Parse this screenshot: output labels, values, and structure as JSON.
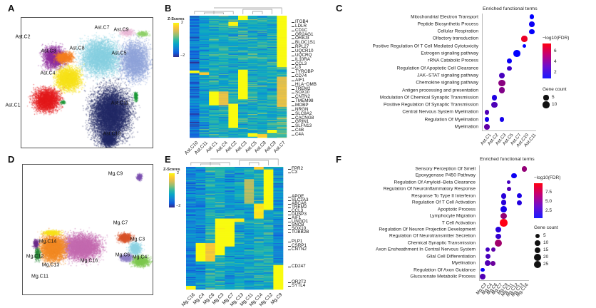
{
  "panels": {
    "A": "A",
    "B": "B",
    "C": "C",
    "D": "D",
    "E": "E",
    "F": "F"
  },
  "umap_astro": {
    "clusters": [
      {
        "label": "Ast.C1",
        "color": "#e31a1c"
      },
      {
        "label": "Ast.C2",
        "color": "#8e2c9c"
      },
      {
        "label": "Ast.C3",
        "color": "#f57f20"
      },
      {
        "label": "Ast.C4",
        "color": "#f7e21a"
      },
      {
        "label": "Ast.C5",
        "color": "#8fa3d9"
      },
      {
        "label": "Ast.C7",
        "color": "#e9b8d6"
      },
      {
        "label": "Ast.C8",
        "color": "#86cfe0"
      },
      {
        "label": "Ast.C9",
        "color": "#8fd16a"
      },
      {
        "label": "Ast.C10",
        "color": "#232a66"
      },
      {
        "label": "Ast.C11",
        "color": "#1f9a3a"
      }
    ]
  },
  "umap_micro": {
    "clusters": [
      {
        "label": "Mg.C9",
        "color": "#7b4fb0"
      },
      {
        "label": "Mg.C7",
        "color": "#d9532a"
      },
      {
        "label": "Mg.C3",
        "color": "#8ed3e3"
      },
      {
        "label": "Mg.C6",
        "color": "#9183c8"
      },
      {
        "label": "Mg.C4",
        "color": "#7ec850"
      },
      {
        "label": "Mg.C14",
        "color": "#f7e21a"
      },
      {
        "label": "Mg.C12",
        "color": "#6b2a8a"
      },
      {
        "label": "Mg.C13",
        "color": "#f28a24"
      },
      {
        "label": "Mg.C16",
        "color": "#c46bb0"
      },
      {
        "label": "Mg.C11",
        "color": "#2a8a3a"
      }
    ]
  },
  "heatmap_astro": {
    "legend_title": "Z-Scores",
    "legend_max": "2",
    "legend_min": "−2",
    "columns": [
      "Ast.C10",
      "Ast.C11",
      "Ast.C1",
      "Ast.C4",
      "Ast.C2",
      "Ast.C3",
      "Ast.C5",
      "Ast.C8",
      "Ast.C9",
      "Ast.C7"
    ],
    "genes": [
      "ITGB4",
      "LDLR",
      "CD1C",
      "OR2AG1",
      "OR8J3",
      "BLOC1S1",
      "RPL27",
      "UQCR10",
      "UQCRQ",
      "IL10RA",
      "CCL3",
      "C3",
      "TYROBP",
      "CD74",
      "AIF1",
      "HLA−DMB",
      "TREM2",
      "SOX10",
      "CNTN2",
      "TMEM98",
      "MOBP",
      "NRGN",
      "SLC8A2",
      "CACNG8",
      "GRIN1",
      "SLFN13",
      "C4B",
      "C4A"
    ]
  },
  "heatmap_micro": {
    "legend_title": "Z-Scores",
    "legend_max": "2",
    "legend_min": "−2",
    "columns": [
      "Mg.C16",
      "Mg.C4",
      "Mg.C6",
      "Mg.C3",
      "Mg.C7",
      "Mg.C13",
      "Mg.C11",
      "Mg.C14",
      "Mg.C12",
      "Mg.C9"
    ],
    "genes": [
      "FPR2",
      "C3",
      "APOE",
      "SLC2A3",
      "ABCA6",
      "TREM2",
      "CCL3",
      "DUSP3",
      "AIF1",
      "LINGO1",
      "SNCB",
      "SOX10",
      "TUBB2B",
      "PLP1",
      "CSRP1",
      "CNTN2",
      "CD247",
      "OR2T2",
      "SYTL4"
    ]
  },
  "colorscale": [
    "#352a87",
    "#0f5cdd",
    "#1481d6",
    "#06a4ca",
    "#2eb7a4",
    "#87bf77",
    "#d1bb59",
    "#fec832",
    "#f9fb0e"
  ],
  "chart_data": [
    {
      "type": "scatter",
      "title": "Enriched functional terms",
      "categories": [
        "Ast.C1",
        "Ast.C2",
        "Ast.C3",
        "Ast.C5",
        "Ast.C7",
        "Ast.C10",
        "Ast.C11"
      ],
      "terms": [
        "Mitochondrial Electron Transport",
        "Peptide Biosynthetic Process",
        "Cellular Respiration",
        "Olfactory transduction",
        "Positive Regulation Of T Cell Mediated Cytotoxicity",
        "Estrogen signaling pathway",
        "rRNA Catabolic Process",
        "Regulation Of Apoptotic Cell Clearance",
        "JAK−STAT signaling pathway",
        "Chemokine signaling pathway",
        "Antigen processing and presentation",
        "Modulation Of Chemical Synaptic Transmission",
        "Positive Regulation Of Synaptic Transmission",
        "Central Nervous System Myelination",
        "Regulation Of Myelination",
        "Myelination"
      ],
      "points": [
        {
          "term": 0,
          "cat": "Ast.C11",
          "count": 4,
          "neglog10fdr": 1.0
        },
        {
          "term": 1,
          "cat": "Ast.C11",
          "count": 6,
          "neglog10fdr": 1.3
        },
        {
          "term": 2,
          "cat": "Ast.C11",
          "count": 5,
          "neglog10fdr": 1.1
        },
        {
          "term": 3,
          "cat": "Ast.C10",
          "count": 8,
          "neglog10fdr": 7.0
        },
        {
          "term": 4,
          "cat": "Ast.C10",
          "count": 2,
          "neglog10fdr": 1.0
        },
        {
          "term": 5,
          "cat": "Ast.C7",
          "count": 12,
          "neglog10fdr": 1.0
        },
        {
          "term": 6,
          "cat": "Ast.C5",
          "count": 4,
          "neglog10fdr": 1.2
        },
        {
          "term": 7,
          "cat": "Ast.C5",
          "count": 3,
          "neglog10fdr": 2.5
        },
        {
          "term": 8,
          "cat": "Ast.C3",
          "count": 8,
          "neglog10fdr": 2.8
        },
        {
          "term": 9,
          "cat": "Ast.C3",
          "count": 11,
          "neglog10fdr": 4.5
        },
        {
          "term": 10,
          "cat": "Ast.C3",
          "count": 9,
          "neglog10fdr": 4.3
        },
        {
          "term": 11,
          "cat": "Ast.C2",
          "count": 7,
          "neglog10fdr": 1.8
        },
        {
          "term": 12,
          "cat": "Ast.C2",
          "count": 8,
          "neglog10fdr": 3.0
        },
        {
          "term": 13,
          "cat": "Ast.C1",
          "count": 4,
          "neglog10fdr": 3.0
        },
        {
          "term": 14,
          "cat": "Ast.C1",
          "count": 4,
          "neglog10fdr": 1.5
        },
        {
          "term": 14,
          "cat": "Ast.C3",
          "count": 4,
          "neglog10fdr": 1.5
        },
        {
          "term": 15,
          "cat": "Ast.C1",
          "count": 6,
          "neglog10fdr": 3.5
        }
      ],
      "color_legend": {
        "title": "−log10(FDR)",
        "ticks": [
          "6",
          "4",
          "2"
        ],
        "range": [
          1,
          7.5
        ]
      },
      "size_legend": {
        "title": "Gene count",
        "ticks": [
          "5",
          "10"
        ]
      }
    },
    {
      "type": "scatter",
      "title": "Enriched functional terms",
      "categories": [
        "Mg.C3",
        "Mg.C4",
        "Mg.C6",
        "Mg.C7",
        "Mg.C9",
        "Mg.C11",
        "Mg.C12",
        "Mg.C13",
        "Mg.C16"
      ],
      "terms": [
        "Sensory Perception Of Smell",
        "Epoxygenase P450 Pathway",
        "Regulation Of Amyloid−Beta Clearance",
        "Regulation Of Neuroinflammatory Response",
        "Response To Type II Interferon",
        "Regulation Of T Cell Activation",
        "Apoptotic Process",
        "Lymphocyte Migration",
        "T Cell Activation",
        "Regulation Of Neuron Projection Development",
        "Regulation Of Neurotransmitter Secretion",
        "Chemical Synaptic Transmission",
        "Axon Ensheathment In Central Nervous System",
        "Glial Cell Differentiation",
        "Myelination",
        "Regulation Of Axon Guidance",
        "Glucuronate Metabolic Process"
      ],
      "points": [
        {
          "term": 0,
          "cat": "Mg.C16",
          "count": 8,
          "neglog10fdr": 6.0
        },
        {
          "term": 1,
          "cat": "Mg.C12",
          "count": 8,
          "neglog10fdr": 1.0
        },
        {
          "term": 2,
          "cat": "Mg.C11",
          "count": 2,
          "neglog10fdr": 3.0
        },
        {
          "term": 3,
          "cat": "Mg.C11",
          "count": 4,
          "neglog10fdr": 3.5
        },
        {
          "term": 4,
          "cat": "Mg.C9",
          "count": 10,
          "neglog10fdr": 2.0
        },
        {
          "term": 4,
          "cat": "Mg.C13",
          "count": 8,
          "neglog10fdr": 1.5
        },
        {
          "term": 5,
          "cat": "Mg.C9",
          "count": 9,
          "neglog10fdr": 2.0
        },
        {
          "term": 5,
          "cat": "Mg.C13",
          "count": 7,
          "neglog10fdr": 1.8
        },
        {
          "term": 6,
          "cat": "Mg.C9",
          "count": 14,
          "neglog10fdr": 1.3
        },
        {
          "term": 7,
          "cat": "Mg.C9",
          "count": 12,
          "neglog10fdr": 6.0
        },
        {
          "term": 8,
          "cat": "Mg.C9",
          "count": 22,
          "neglog10fdr": 10.0
        },
        {
          "term": 9,
          "cat": "Mg.C7",
          "count": 14,
          "neglog10fdr": 2.0
        },
        {
          "term": 10,
          "cat": "Mg.C7",
          "count": 8,
          "neglog10fdr": 2.5
        },
        {
          "term": 11,
          "cat": "Mg.C7",
          "count": 22,
          "neglog10fdr": 6.5
        },
        {
          "term": 12,
          "cat": "Mg.C4",
          "count": 5,
          "neglog10fdr": 3.0
        },
        {
          "term": 12,
          "cat": "Mg.C6",
          "count": 5,
          "neglog10fdr": 4.0
        },
        {
          "term": 13,
          "cat": "Mg.C4",
          "count": 9,
          "neglog10fdr": 3.2
        },
        {
          "term": 14,
          "cat": "Mg.C4",
          "count": 12,
          "neglog10fdr": 3.5
        },
        {
          "term": 14,
          "cat": "Mg.C6",
          "count": 8,
          "neglog10fdr": 4.5
        },
        {
          "term": 15,
          "cat": "Mg.C3",
          "count": 4,
          "neglog10fdr": 0.8
        },
        {
          "term": 16,
          "cat": "Mg.C3",
          "count": 9,
          "neglog10fdr": 3.5
        }
      ],
      "color_legend": {
        "title": "−log10(FDR)",
        "ticks": [
          "7.5",
          "5.0",
          "2.5"
        ],
        "range": [
          0.5,
          10
        ]
      },
      "size_legend": {
        "title": "Gene count",
        "ticks": [
          "5",
          "10",
          "15",
          "20",
          "25"
        ]
      }
    }
  ]
}
